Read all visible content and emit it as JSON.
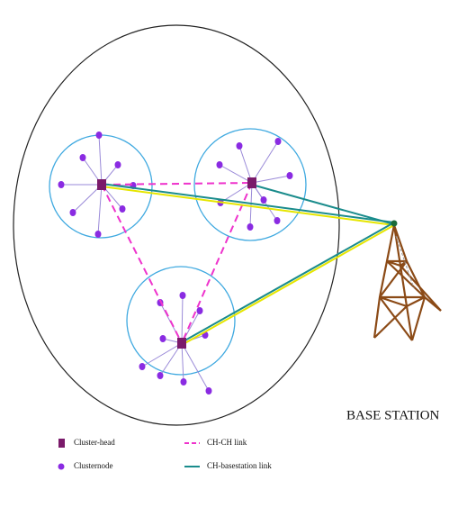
{
  "base_station": {
    "label": "BASE STATION"
  },
  "legend": {
    "items": [
      {
        "label": "Cluster-head"
      },
      {
        "label": "Clusternode"
      },
      {
        "label": "CH-CH link"
      },
      {
        "label": "CH-basestation link"
      }
    ]
  }
}
